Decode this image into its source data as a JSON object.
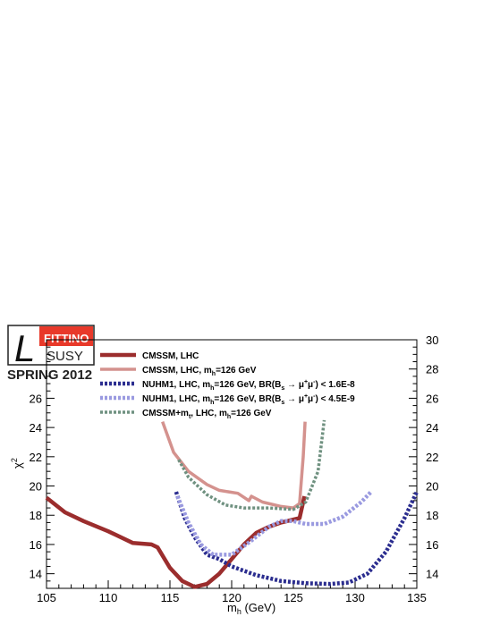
{
  "logo": {
    "script_letter": "L",
    "name": "FITTINO",
    "sub": "SUSY",
    "edition": "SPRING 2012",
    "colors": {
      "red": "#e8392a",
      "dark": "#222222"
    }
  },
  "chart_data": {
    "type": "line",
    "title": "",
    "xlabel": "m_h (GeV)",
    "xlabel_main": "m",
    "xlabel_sub": "h",
    "xlabel_unit": " (GeV)",
    "ylabel": "χ²",
    "ylabel_main": "χ",
    "ylabel_sup": "2",
    "xlim": [
      105,
      135
    ],
    "ylim": [
      13,
      30
    ],
    "right_axis_ylim": [
      13,
      30
    ],
    "x_ticks": [
      105,
      110,
      115,
      120,
      125,
      130,
      135
    ],
    "y_ticks_left": [
      14,
      16,
      18,
      20,
      22,
      24,
      26
    ],
    "y_ticks_right": [
      14,
      16,
      18,
      20,
      22,
      24,
      26,
      28,
      30
    ],
    "grid": false,
    "legend_position": "top-left",
    "series": [
      {
        "name": "CMSSM, LHC",
        "legend": [
          [
            "CMSSM, LHC",
            "n"
          ]
        ],
        "color": "#9b2d2d",
        "style": "solid",
        "width": 4.5,
        "points": [
          [
            105,
            19.2
          ],
          [
            106.5,
            18.2
          ],
          [
            108,
            17.6
          ],
          [
            110,
            16.9
          ],
          [
            112,
            16.1
          ],
          [
            113.5,
            16.0
          ],
          [
            114,
            15.8
          ],
          [
            115,
            14.4
          ],
          [
            116,
            13.5
          ],
          [
            117,
            13.1
          ],
          [
            118,
            13.3
          ],
          [
            119,
            14.0
          ],
          [
            120,
            15.0
          ],
          [
            121,
            16.0
          ],
          [
            122,
            16.8
          ],
          [
            123,
            17.2
          ],
          [
            124,
            17.5
          ],
          [
            125,
            17.7
          ],
          [
            125.5,
            17.8
          ],
          [
            125.9,
            19.3
          ]
        ]
      },
      {
        "name": "CMSSM, LHC, m_h=126 GeV",
        "legend": [
          [
            "CMSSM, LHC, m",
            "n"
          ],
          [
            "h",
            "sub"
          ],
          [
            "=126 GeV",
            "n"
          ]
        ],
        "color": "#d4928e",
        "style": "solid",
        "width": 3.5,
        "points": [
          [
            114.4,
            24.4
          ],
          [
            115.3,
            22.3
          ],
          [
            116.5,
            21.0
          ],
          [
            118,
            20.1
          ],
          [
            119,
            19.7
          ],
          [
            120.5,
            19.5
          ],
          [
            121.4,
            19.0
          ],
          [
            121.6,
            19.3
          ],
          [
            122.5,
            18.9
          ],
          [
            124,
            18.6
          ],
          [
            125,
            18.5
          ],
          [
            125.5,
            18.8
          ],
          [
            125.8,
            22.0
          ],
          [
            125.95,
            24.4
          ]
        ]
      },
      {
        "name": "NUHM1, LHC, m_h=126 GeV, BR(B_s → μ⁺μ⁻) < 1.6E-8",
        "legend": [
          [
            "NUHM1, LHC, m",
            "n"
          ],
          [
            "h",
            "sub"
          ],
          [
            "=126 GeV, BR(B",
            "n"
          ],
          [
            "s",
            "sub"
          ],
          [
            " → μ",
            "n"
          ],
          [
            "+",
            "sup"
          ],
          [
            "μ",
            "n"
          ],
          [
            "-",
            "sup"
          ],
          [
            ") < 1.6E-8",
            "n"
          ]
        ],
        "color": "#2b2d8f",
        "style": "dotted",
        "width": 4.5,
        "points": [
          [
            115.5,
            19.6
          ],
          [
            116.2,
            17.8
          ],
          [
            117,
            16.5
          ],
          [
            118,
            15.3
          ],
          [
            119,
            15.0
          ],
          [
            120,
            14.5
          ],
          [
            122,
            13.9
          ],
          [
            124,
            13.5
          ],
          [
            126,
            13.35
          ],
          [
            128,
            13.3
          ],
          [
            129.5,
            13.4
          ],
          [
            131,
            14.0
          ],
          [
            132.5,
            15.5
          ],
          [
            134,
            17.8
          ],
          [
            135,
            19.6
          ]
        ]
      },
      {
        "name": "NUHM1, LHC, m_h=126 GeV, BR(B_s → μ⁺μ⁻) < 4.5E-9",
        "legend": [
          [
            "NUHM1, LHC, m",
            "n"
          ],
          [
            "h",
            "sub"
          ],
          [
            "=126 GeV, BR(B",
            "n"
          ],
          [
            "s",
            "sub"
          ],
          [
            " → μ",
            "n"
          ],
          [
            "+",
            "sup"
          ],
          [
            "μ",
            "n"
          ],
          [
            "-",
            "sup"
          ],
          [
            ") < 4.5E-9",
            "n"
          ]
        ],
        "color": "#9a9ae0",
        "style": "dotted",
        "width": 4.5,
        "points": [
          [
            115.6,
            19.3
          ],
          [
            116.5,
            17.5
          ],
          [
            117.5,
            16.0
          ],
          [
            118.5,
            15.3
          ],
          [
            120,
            15.3
          ],
          [
            121.5,
            16.2
          ],
          [
            123,
            17.2
          ],
          [
            124,
            17.6
          ],
          [
            125,
            17.6
          ],
          [
            126,
            17.4
          ],
          [
            127.5,
            17.4
          ],
          [
            129,
            17.9
          ],
          [
            130.5,
            18.9
          ],
          [
            131.3,
            19.6
          ]
        ]
      },
      {
        "name": "CMSSM+m_t, LHC, m_h=126 GeV",
        "legend": [
          [
            "CMSSM+m",
            "n"
          ],
          [
            "t",
            "sub"
          ],
          [
            ", LHC, m",
            "n"
          ],
          [
            "h",
            "sub"
          ],
          [
            "=126 GeV",
            "n"
          ]
        ],
        "color": "#6f9180",
        "style": "dotted",
        "width": 3.5,
        "points": [
          [
            115.7,
            21.8
          ],
          [
            116.5,
            20.6
          ],
          [
            118,
            19.4
          ],
          [
            119.5,
            18.7
          ],
          [
            121,
            18.5
          ],
          [
            123,
            18.5
          ],
          [
            125,
            18.4
          ],
          [
            126,
            18.9
          ],
          [
            127,
            21.0
          ],
          [
            127.5,
            24.5
          ]
        ]
      }
    ]
  }
}
